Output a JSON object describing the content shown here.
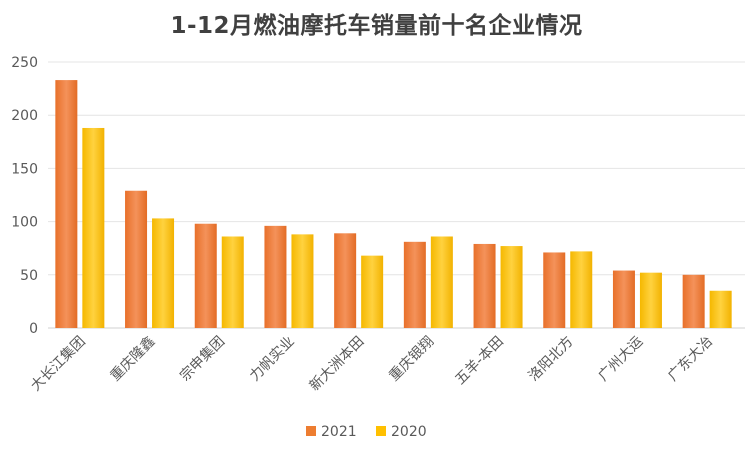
{
  "chart_data": {
    "type": "bar",
    "title": "1-12月燃油摩托车销量前十名企业情况",
    "categories": [
      "大长江集团",
      "重庆隆鑫",
      "宗申集团",
      "力帆实业",
      "新大洲本田",
      "重庆银翔",
      "五羊-本田",
      "洛阳北方",
      "广州大运",
      "广东大冶"
    ],
    "series": [
      {
        "name": "2021",
        "values": [
          233,
          129,
          98,
          96,
          89,
          81,
          79,
          71,
          54,
          50
        ],
        "color": "#ED7D31"
      },
      {
        "name": "2020",
        "values": [
          188,
          103,
          86,
          88,
          68,
          86,
          77,
          72,
          52,
          35
        ],
        "color": "#FFC000"
      }
    ],
    "ylim": [
      0,
      250
    ],
    "yticks": [
      0,
      50,
      100,
      150,
      200,
      250
    ],
    "grid": true,
    "legend": "bottom",
    "xlabel": "",
    "ylabel": ""
  }
}
